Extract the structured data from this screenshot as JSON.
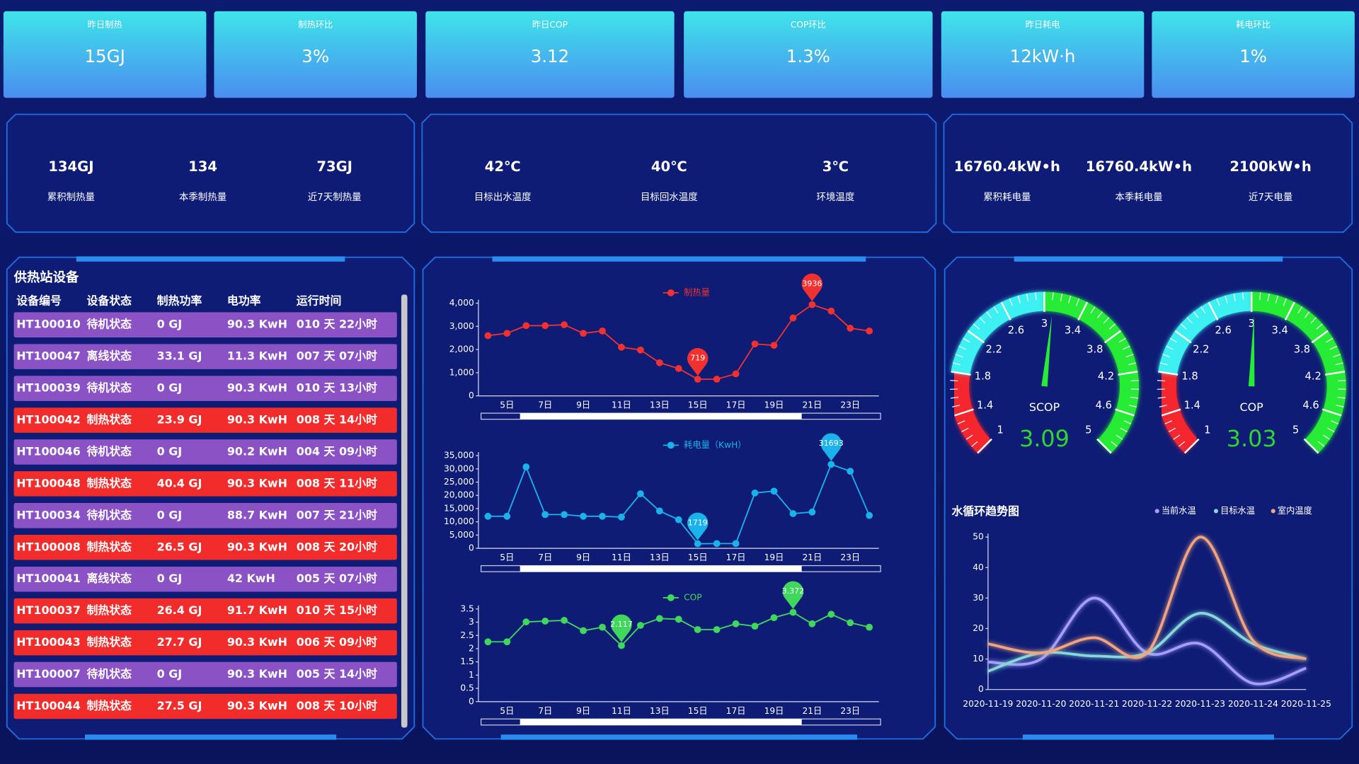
{
  "kpis": [
    {
      "label": "昨日制热",
      "value": "15GJ"
    },
    {
      "label": "制热环比",
      "value": "3%"
    },
    {
      "label": "昨日COP",
      "value": "3.12"
    },
    {
      "label": "COP环比",
      "value": "1.3%"
    },
    {
      "label": "昨日耗电",
      "value": "12kW·h"
    },
    {
      "label": "耗电环比",
      "value": "1%"
    }
  ],
  "stats": [
    [
      {
        "value": "134GJ",
        "label": "累积制热量"
      },
      {
        "value": "134",
        "label": "本季制热量"
      },
      {
        "value": "73GJ",
        "label": "近7天制热量"
      }
    ],
    [
      {
        "value": "42℃",
        "label": "目标出水温度"
      },
      {
        "value": "40℃",
        "label": "目标回水温度"
      },
      {
        "value": "3℃",
        "label": "环境温度"
      }
    ],
    [
      {
        "value": "16760.4kW•h",
        "label": "累积耗电量"
      },
      {
        "value": "16760.4kW•h",
        "label": "本季耗电量"
      },
      {
        "value": "2100kW•h",
        "label": "近7天电量"
      }
    ]
  ],
  "table": {
    "title": "供热站设备",
    "headers": [
      "设备编号",
      "设备状态",
      "制热功率",
      "电功率",
      "运行时间"
    ],
    "rows": [
      {
        "cells": [
          "HT100010",
          "待机状态",
          "0 GJ",
          "90.3 KwH",
          "010 天 22小时"
        ],
        "color": "#8a52c4"
      },
      {
        "cells": [
          "HT100047",
          "离线状态",
          "33.1 GJ",
          "11.3 KwH",
          "007 天 07小时"
        ],
        "color": "#8a52c4"
      },
      {
        "cells": [
          "HT100039",
          "待机状态",
          "0 GJ",
          "90.3 KwH",
          "010 天 13小时"
        ],
        "color": "#8a52c4"
      },
      {
        "cells": [
          "HT100042",
          "制热状态",
          "23.9 GJ",
          "90.3 KwH",
          "008 天 14小时"
        ],
        "color": "#f22b2b"
      },
      {
        "cells": [
          "HT100046",
          "待机状态",
          "0 GJ",
          "90.2 KwH",
          "004 天 09小时"
        ],
        "color": "#8a52c4"
      },
      {
        "cells": [
          "HT100048",
          "制热状态",
          "40.4 GJ",
          "90.3 KwH",
          "008 天 11小时"
        ],
        "color": "#f22b2b"
      },
      {
        "cells": [
          "HT100034",
          "待机状态",
          "0 GJ",
          "88.7 KwH",
          "007 天 21小时"
        ],
        "color": "#8a52c4"
      },
      {
        "cells": [
          "HT100008",
          "制热状态",
          "26.5 GJ",
          "90.3 KwH",
          "008 天 20小时"
        ],
        "color": "#f22b2b"
      },
      {
        "cells": [
          "HT100041",
          "离线状态",
          "0 GJ",
          "42 KwH",
          "005 天 07小时"
        ],
        "color": "#8a52c4"
      },
      {
        "cells": [
          "HT100037",
          "制热状态",
          "26.4 GJ",
          "91.7 KwH",
          "010 天 15小时"
        ],
        "color": "#f22b2b"
      },
      {
        "cells": [
          "HT100043",
          "制热状态",
          "27.7 GJ",
          "90.3 KwH",
          "006 天 09小时"
        ],
        "color": "#f22b2b"
      },
      {
        "cells": [
          "HT100007",
          "待机状态",
          "0 GJ",
          "90.3 KwH",
          "005 天 14小时"
        ],
        "color": "#8a52c4"
      },
      {
        "cells": [
          "HT100044",
          "制热状态",
          "27.5 GJ",
          "90.3 KwH",
          "008 天 10小时"
        ],
        "color": "#f22b2b"
      }
    ]
  },
  "chart_data": [
    {
      "type": "line",
      "categories": [
        null,
        "5日",
        null,
        "7日",
        null,
        "9日",
        null,
        "11日",
        null,
        "13日",
        null,
        "15日",
        null,
        "17日",
        null,
        "19日",
        null,
        "21日",
        null,
        "23日",
        null
      ],
      "series": [
        {
          "name": "制热量",
          "color": "#f0312f",
          "values": [
            2600,
            2700,
            3030,
            3030,
            3070,
            2700,
            2800,
            2100,
            1980,
            1430,
            1180,
            719,
            720,
            950,
            2240,
            2180,
            3360,
            3936,
            3660,
            2920,
            2800
          ]
        }
      ],
      "ylim": [
        0,
        4000
      ],
      "yticks": [
        0,
        {
          "value": 1000,
          "label": "1,000"
        },
        {
          "value": 2000,
          "label": "2,000"
        },
        {
          "value": 3000,
          "label": "3,000"
        },
        {
          "value": 4000,
          "label": "4,000"
        }
      ],
      "grid": false,
      "legend": "top-center",
      "markers": [
        "max",
        "min"
      ]
    },
    {
      "type": "line",
      "categories": [
        null,
        "5日",
        null,
        "7日",
        null,
        "9日",
        null,
        "11日",
        null,
        "13日",
        null,
        "15日",
        null,
        "17日",
        null,
        "19日",
        null,
        "21日",
        null,
        "23日",
        null
      ],
      "series": [
        {
          "name": "耗电量（KwH）",
          "color": "#19b2ea",
          "values": [
            12100,
            12100,
            30750,
            12750,
            12750,
            12100,
            12100,
            11800,
            20600,
            14100,
            10800,
            1719,
            1800,
            1800,
            20900,
            21600,
            13100,
            13700,
            31693,
            29100,
            12400
          ]
        }
      ],
      "ylim": [
        0,
        35000
      ],
      "yticks": [
        0,
        {
          "value": 5000,
          "label": "5,000"
        },
        {
          "value": 10000,
          "label": "10,000"
        },
        {
          "value": 15000,
          "label": "15,000"
        },
        {
          "value": 20000,
          "label": "20,000"
        },
        {
          "value": 25000,
          "label": "25,000"
        },
        {
          "value": 30000,
          "label": "30,000"
        },
        {
          "value": 35000,
          "label": "35,000"
        }
      ],
      "grid": false,
      "legend": "top-center",
      "markers": [
        "max",
        "min"
      ]
    },
    {
      "type": "line",
      "categories": [
        null,
        "5日",
        null,
        "7日",
        null,
        "9日",
        null,
        "11日",
        null,
        "13日",
        null,
        "15日",
        null,
        "17日",
        null,
        "19日",
        null,
        "21日",
        null,
        "23日",
        null
      ],
      "series": [
        {
          "name": "COP",
          "color": "#3fd85c",
          "values": [
            2.26,
            2.26,
            3.01,
            3.04,
            3.07,
            2.68,
            2.81,
            2.117,
            2.88,
            3.14,
            3.11,
            2.72,
            2.72,
            2.94,
            2.85,
            3.17,
            3.372,
            2.94,
            3.3,
            2.98,
            2.81
          ]
        }
      ],
      "ylim": [
        0,
        3.5
      ],
      "yticks": [
        0,
        0.5,
        1,
        1.5,
        2,
        2.5,
        3,
        3.5
      ],
      "grid": false,
      "legend": "top-center",
      "markers": [
        "max",
        "min"
      ]
    },
    {
      "type": "gauge",
      "title": "SCOP",
      "value": 3.09,
      "range": [
        1,
        5
      ],
      "ticks": [
        1,
        1.4,
        1.8,
        2.2,
        2.6,
        3,
        3.4,
        3.8,
        4.2,
        4.6,
        5
      ],
      "bands": [
        {
          "to": 1.8,
          "color": "#f5252f"
        },
        {
          "to": 3,
          "color": "#3ef0f2"
        },
        {
          "to": 5,
          "color": "#25ec35"
        }
      ],
      "value_color": "#2fd62f"
    },
    {
      "type": "gauge",
      "title": "COP",
      "value": 3.03,
      "range": [
        1,
        5
      ],
      "ticks": [
        1,
        1.4,
        1.8,
        2.2,
        2.6,
        3,
        3.4,
        3.8,
        4.2,
        4.6,
        5
      ],
      "bands": [
        {
          "to": 1.8,
          "color": "#f5252f"
        },
        {
          "to": 3,
          "color": "#3ef0f2"
        },
        {
          "to": 5,
          "color": "#25ec35"
        }
      ],
      "value_color": "#2fd62f"
    },
    {
      "type": "line",
      "title": "水循环趋势图",
      "smooth": true,
      "categories": [
        "2020-11-19",
        "2020-11-20",
        "2020-11-21",
        "2020-11-22",
        "2020-11-23",
        "2020-11-24",
        "2020-11-25"
      ],
      "series": [
        {
          "name": "当前水温",
          "color": "#a59dff",
          "values": [
            9,
            10,
            30,
            12,
            15,
            2,
            7
          ]
        },
        {
          "name": "目标水温",
          "color": "#86d9d8",
          "values": [
            6,
            12,
            11,
            12,
            25,
            15,
            10
          ]
        },
        {
          "name": "室内温度",
          "color": "#f2a47e",
          "values": [
            15,
            12,
            17,
            12,
            50,
            16,
            10
          ]
        }
      ],
      "ylim": [
        0,
        50
      ],
      "yticks": [
        0,
        10,
        20,
        30,
        40,
        50
      ],
      "grid": false,
      "legend": "top-right"
    }
  ]
}
